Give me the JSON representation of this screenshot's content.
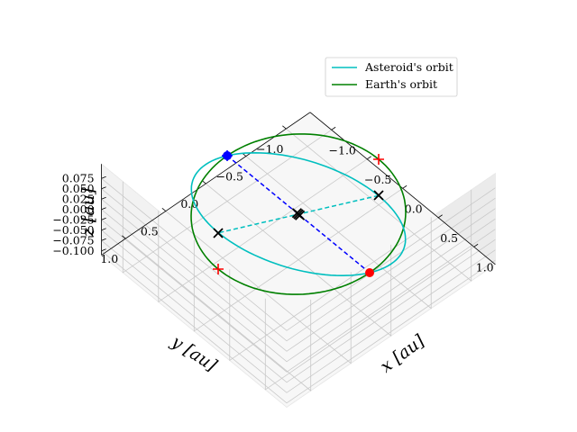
{
  "chart_data": {
    "type": "line",
    "projection": "3d",
    "title": "",
    "xlabel": "x [au]",
    "ylabel": "y [au]",
    "zlabel": "z [au]",
    "xlim": [
      -1.3,
      1.3
    ],
    "ylim": [
      -1.3,
      1.3
    ],
    "zlim": [
      -0.11,
      0.11
    ],
    "xticks": [
      "−1.0",
      "−0.5",
      "0.0",
      "0.5",
      "1.0"
    ],
    "yticks": [
      "1.0",
      "0.5",
      "0.0",
      "−0.5",
      "−1.0"
    ],
    "zticks": [
      "0.075",
      "0.050",
      "0.025",
      "0.000",
      "−0.025",
      "−0.050",
      "−0.075",
      "−0.100"
    ],
    "grid": true,
    "legend_placement": "top-right",
    "series": [
      {
        "name": "Asteroid's orbit",
        "color": "#00bfbf",
        "shape": "ellipse",
        "semi_major_axis_au": 1.0,
        "eccentricity": 0.0,
        "inclination_deg": 5.0
      },
      {
        "name": "Earth's orbit",
        "color": "#008000",
        "shape": "circle",
        "radius_au": 1.0
      }
    ],
    "line_of_nodes": {
      "color": "#0000ff",
      "style": "dashed",
      "from": [
        -1.0,
        0.0,
        0.0
      ],
      "to": [
        1.0,
        0.0,
        0.0
      ]
    },
    "minor_axis": {
      "color": "#00bfbf",
      "style": "dashed",
      "from": [
        0.0,
        -1.0,
        0.0
      ],
      "to": [
        0.0,
        1.0,
        0.0
      ]
    },
    "points": [
      {
        "marker": "circle",
        "color": "#ff0000",
        "x": 1.0,
        "y": 0.0,
        "z": 0.0
      },
      {
        "marker": "circle",
        "color": "#0000ff",
        "x": -1.0,
        "y": 0.0,
        "z": 0.0
      },
      {
        "marker": "plus",
        "color": "#0000ff",
        "x": -1.0,
        "y": 0.0,
        "z": 0.0
      },
      {
        "marker": "plus",
        "color": "#ff0000",
        "x": 0.0,
        "y": 1.0,
        "z": 0.0
      },
      {
        "marker": "plus",
        "color": "#ff0000",
        "x": 0.0,
        "y": -1.0,
        "z": 0.0
      },
      {
        "marker": "x",
        "color": "#000000",
        "x": 0.0,
        "y": 1.0,
        "z": 0.087
      },
      {
        "marker": "x",
        "color": "#000000",
        "x": 0.0,
        "y": -1.0,
        "z": -0.087
      },
      {
        "marker": "x",
        "color": "#000000",
        "x": 0.0,
        "y": 0.0,
        "z": 0.0
      },
      {
        "marker": "x",
        "color": "#000000",
        "x": 0.02,
        "y": 0.0,
        "z": 0.0
      },
      {
        "marker": "x",
        "color": "#000000",
        "x": -0.02,
        "y": 0.0,
        "z": 0.0
      }
    ]
  }
}
